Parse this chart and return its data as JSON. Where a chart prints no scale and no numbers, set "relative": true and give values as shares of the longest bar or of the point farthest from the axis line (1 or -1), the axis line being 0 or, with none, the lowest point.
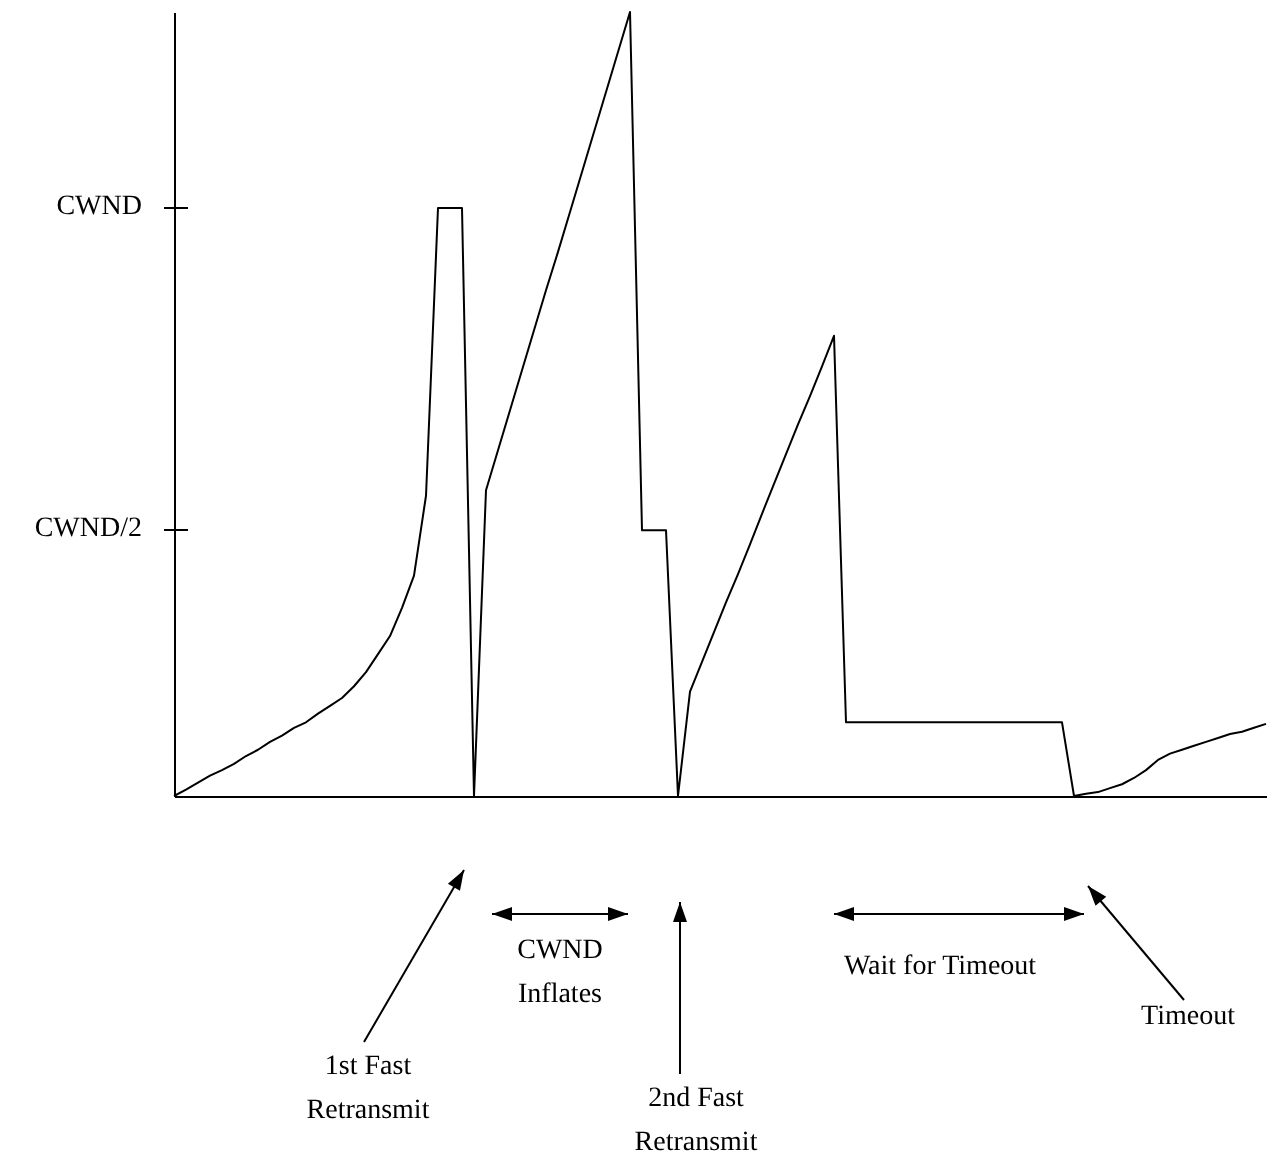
{
  "chart_data": {
    "type": "line",
    "relative": true,
    "tick_labels": false,
    "grid": false,
    "line_style": "solid",
    "marker": "none",
    "categories": [
      null,
      null,
      null,
      null,
      null,
      null,
      null,
      null,
      null,
      null,
      null,
      null,
      null,
      null,
      null,
      null,
      null,
      null,
      null,
      null,
      null,
      null,
      null,
      null,
      null,
      null,
      null,
      null,
      null,
      null,
      null,
      null,
      null,
      null,
      null,
      null,
      null,
      null,
      null,
      null,
      null,
      null,
      null,
      null,
      null,
      null,
      null,
      null,
      null,
      null,
      null,
      null,
      null,
      null,
      null,
      null,
      null,
      null,
      null,
      null,
      null,
      null,
      null,
      null,
      null,
      null,
      null,
      null,
      null,
      null,
      null,
      null,
      null,
      null,
      null,
      null,
      null,
      null,
      null,
      null,
      null,
      null,
      null,
      null,
      null,
      null,
      null,
      null,
      null,
      null,
      null,
      null
    ],
    "series": [
      {
        "color": "#000000",
        "values": [
          0,
          0.008,
          0.017,
          0.026,
          0.033,
          0.041,
          0.051,
          0.059,
          0.069,
          0.077,
          0.087,
          0.094,
          0.105,
          0.115,
          0.125,
          0.14,
          0.158,
          0.181,
          0.204,
          0.24,
          0.281,
          0.383,
          0.75,
          0.75,
          0.75,
          0,
          0.39,
          0.441,
          0.492,
          0.543,
          0.594,
          0.645,
          0.694,
          0.745,
          0.796,
          0.847,
          0.898,
          0.949,
          1,
          0.339,
          0.339,
          0.339,
          0,
          0.133,
          0.171,
          0.209,
          0.247,
          0.283,
          0.321,
          0.36,
          0.398,
          0.436,
          0.474,
          0.51,
          0.548,
          0.587,
          0.094,
          0.094,
          0.094,
          0.094,
          0.094,
          0.094,
          0.094,
          0.094,
          0.094,
          0.094,
          0.094,
          0.094,
          0.094,
          0.094,
          0.094,
          0.094,
          0.094,
          0.094,
          0.094,
          0,
          0.003,
          0.005,
          0.01,
          0.015,
          0.023,
          0.033,
          0.046,
          0.054,
          0.059,
          0.064,
          0.069,
          0.074,
          0.079,
          0.082,
          0.087,
          0.092
        ]
      }
    ],
    "annotations": [
      "CWND",
      "CWND/2",
      "1st Fast\nRetransmit",
      "CWND\nInflates",
      "2nd Fast\nRetransmit",
      "Wait for Timeout",
      "Timeout"
    ]
  }
}
